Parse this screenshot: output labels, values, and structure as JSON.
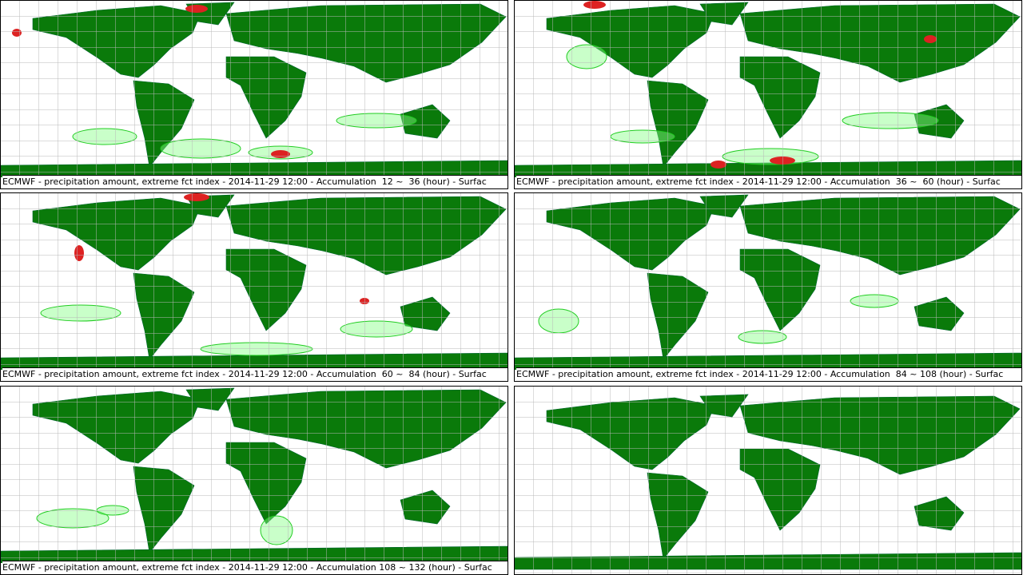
{
  "panels": [
    {
      "caption": "ECMWF - precipitation amount, extreme fct index - 2014-11-29 12:00 - Accumulation  12 ~  36 (hour) - Surfac"
    },
    {
      "caption": "ECMWF - precipitation amount, extreme fct index - 2014-11-29 12:00 - Accumulation  36 ~  60 (hour) - Surfac"
    },
    {
      "caption": "ECMWF - precipitation amount, extreme fct index - 2014-11-29 12:00 - Accumulation  60 ~  84 (hour) - Surfac"
    },
    {
      "caption": "ECMWF - precipitation amount, extreme fct index - 2014-11-29 12:00 - Accumulation  84 ~ 108 (hour) - Surfac"
    },
    {
      "caption": "ECMWF - precipitation amount, extreme fct index - 2014-11-29 12:00 - Accumulation 108 ~ 132 (hour) - Surfac"
    }
  ]
}
